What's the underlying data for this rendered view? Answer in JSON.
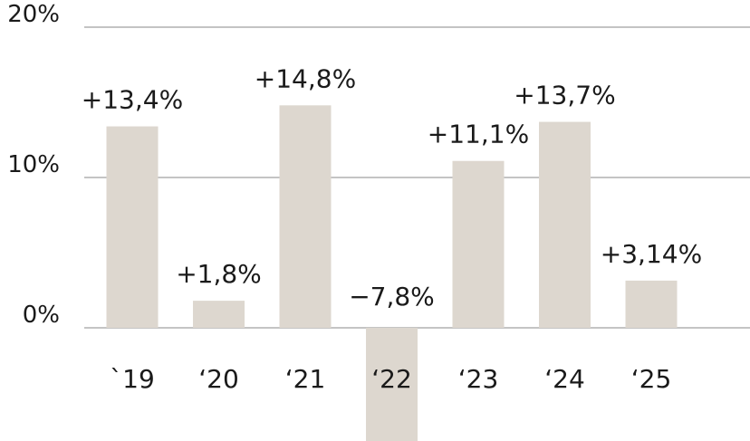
{
  "chart_data": {
    "type": "bar",
    "categories": [
      "`19",
      "‘20",
      "‘21",
      "‘22",
      "‘23",
      "‘24",
      "‘25"
    ],
    "values": [
      13.4,
      1.8,
      14.8,
      -7.8,
      11.1,
      13.7,
      3.14
    ],
    "data_labels": [
      "+13,4%",
      "+1,8%",
      "+14,8%",
      "−7,8%",
      "+11,1%",
      "+13,7%",
      "+3,14%"
    ],
    "y_ticks": [
      0,
      10,
      20
    ],
    "y_tick_labels": [
      "0%",
      "10%",
      "20%"
    ],
    "ylim": [
      -7.8,
      20
    ],
    "grid": true,
    "bar_color": "#ddd7cf",
    "title": "",
    "xlabel": "",
    "ylabel": ""
  }
}
